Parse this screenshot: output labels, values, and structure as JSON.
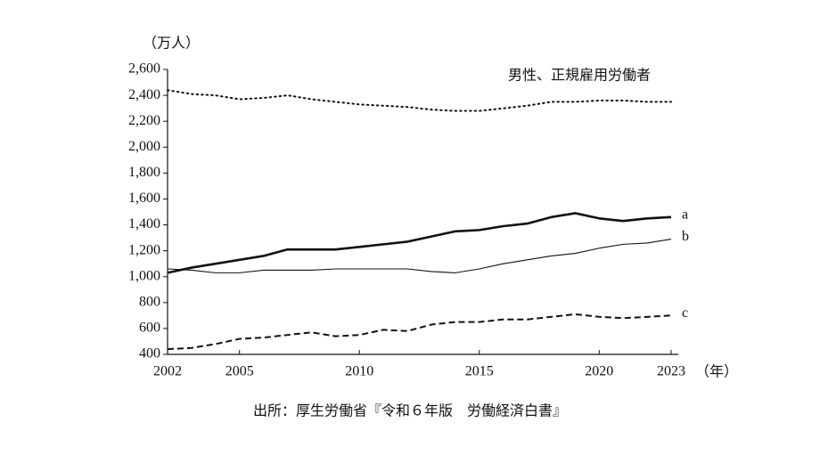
{
  "chart_data": {
    "type": "line",
    "y_label": "（万人）",
    "x_label": "（年）",
    "source": "出所：厚生労働省『令和６年版　労働経済白書』",
    "x": [
      2002,
      2003,
      2004,
      2005,
      2006,
      2007,
      2008,
      2009,
      2010,
      2011,
      2012,
      2013,
      2014,
      2015,
      2016,
      2017,
      2018,
      2019,
      2020,
      2021,
      2022,
      2023
    ],
    "xlim": [
      2002,
      2023
    ],
    "xticks": [
      2002,
      2005,
      2010,
      2015,
      2020,
      2023
    ],
    "ylim": [
      400,
      2600
    ],
    "yticks": [
      400,
      600,
      800,
      {
        "value": 1000,
        "label": "1,000"
      },
      {
        "value": 1200,
        "label": "1,200"
      },
      {
        "value": 1400,
        "label": "1,400"
      },
      {
        "value": 1600,
        "label": "1,600"
      },
      {
        "value": 1800,
        "label": "1,800"
      },
      {
        "value": 2000,
        "label": "2,000"
      },
      {
        "value": 2200,
        "label": "2,200"
      },
      {
        "value": 2400,
        "label": "2,400"
      },
      {
        "value": 2600,
        "label": "2,600"
      }
    ],
    "series": [
      {
        "name": "男性、正規雇用労働者",
        "color": "#111111",
        "style": "dotted",
        "values": [
          2440,
          2410,
          2400,
          2370,
          2380,
          2400,
          2370,
          2350,
          2330,
          2320,
          2310,
          2290,
          2280,
          2280,
          2300,
          2320,
          2350,
          2350,
          2360,
          2360,
          2350,
          2350
        ]
      },
      {
        "name": "a",
        "color": "#111111",
        "style": "thick",
        "values": [
          1030,
          1070,
          1100,
          1130,
          1160,
          1210,
          1210,
          1210,
          1230,
          1250,
          1270,
          1310,
          1350,
          1360,
          1390,
          1410,
          1460,
          1490,
          1450,
          1430,
          1450,
          1460
        ]
      },
      {
        "name": "b",
        "color": "#111111",
        "style": "thin",
        "values": [
          1060,
          1050,
          1030,
          1030,
          1050,
          1050,
          1050,
          1060,
          1060,
          1060,
          1060,
          1040,
          1030,
          1060,
          1100,
          1130,
          1160,
          1180,
          1220,
          1250,
          1260,
          1290
        ]
      },
      {
        "name": "c",
        "color": "#111111",
        "style": "dashed",
        "values": [
          440,
          450,
          480,
          520,
          530,
          550,
          570,
          540,
          550,
          590,
          580,
          630,
          650,
          650,
          670,
          670,
          690,
          710,
          690,
          680,
          690,
          700
        ]
      }
    ]
  }
}
